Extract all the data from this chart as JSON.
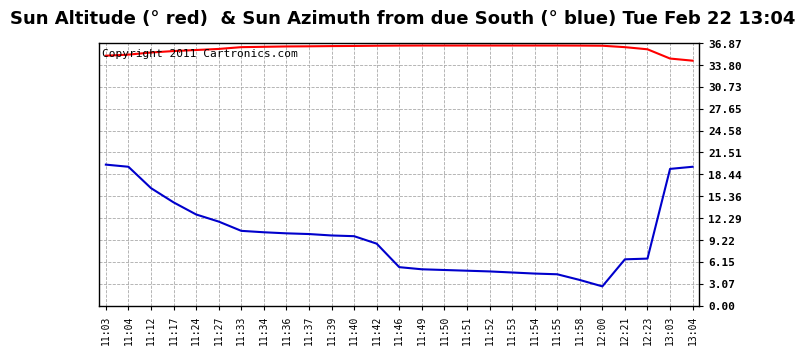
{
  "title": "Sun Altitude (° red)  & Sun Azimuth from due South (° blue) Tue Feb 22 13:04",
  "copyright_text": "Copyright 2011 Cartronics.com",
  "x_labels": [
    "11:03",
    "11:04",
    "11:12",
    "11:17",
    "11:24",
    "11:27",
    "11:33",
    "11:34",
    "11:36",
    "11:37",
    "11:39",
    "11:40",
    "11:42",
    "11:46",
    "11:49",
    "11:50",
    "11:51",
    "11:52",
    "11:53",
    "11:54",
    "11:55",
    "11:58",
    "12:00",
    "12:21",
    "12:23",
    "13:03",
    "13:04"
  ],
  "y_ticks": [
    0.0,
    3.07,
    6.15,
    9.22,
    12.29,
    15.36,
    18.44,
    21.51,
    24.58,
    27.65,
    30.73,
    33.8,
    36.87
  ],
  "ylim": [
    0.0,
    36.87
  ],
  "red_y": [
    35.1,
    35.25,
    35.55,
    35.75,
    35.9,
    36.05,
    36.3,
    36.35,
    36.4,
    36.42,
    36.45,
    36.47,
    36.5,
    36.52,
    36.53,
    36.53,
    36.53,
    36.53,
    36.53,
    36.53,
    36.53,
    36.52,
    36.5,
    36.3,
    36.0,
    34.7,
    34.4
  ],
  "blue_y": [
    19.8,
    19.5,
    16.5,
    14.5,
    12.8,
    11.8,
    10.5,
    10.3,
    10.15,
    10.05,
    9.85,
    9.75,
    8.7,
    5.4,
    5.1,
    5.0,
    4.9,
    4.8,
    4.65,
    4.5,
    4.4,
    3.6,
    2.7,
    6.5,
    6.6,
    19.2,
    19.5
  ],
  "red_color": "#ff0000",
  "blue_color": "#0000cc",
  "bg_color": "#ffffff",
  "grid_color": "#aaaaaa",
  "title_fontsize": 13,
  "copyright_fontsize": 8
}
